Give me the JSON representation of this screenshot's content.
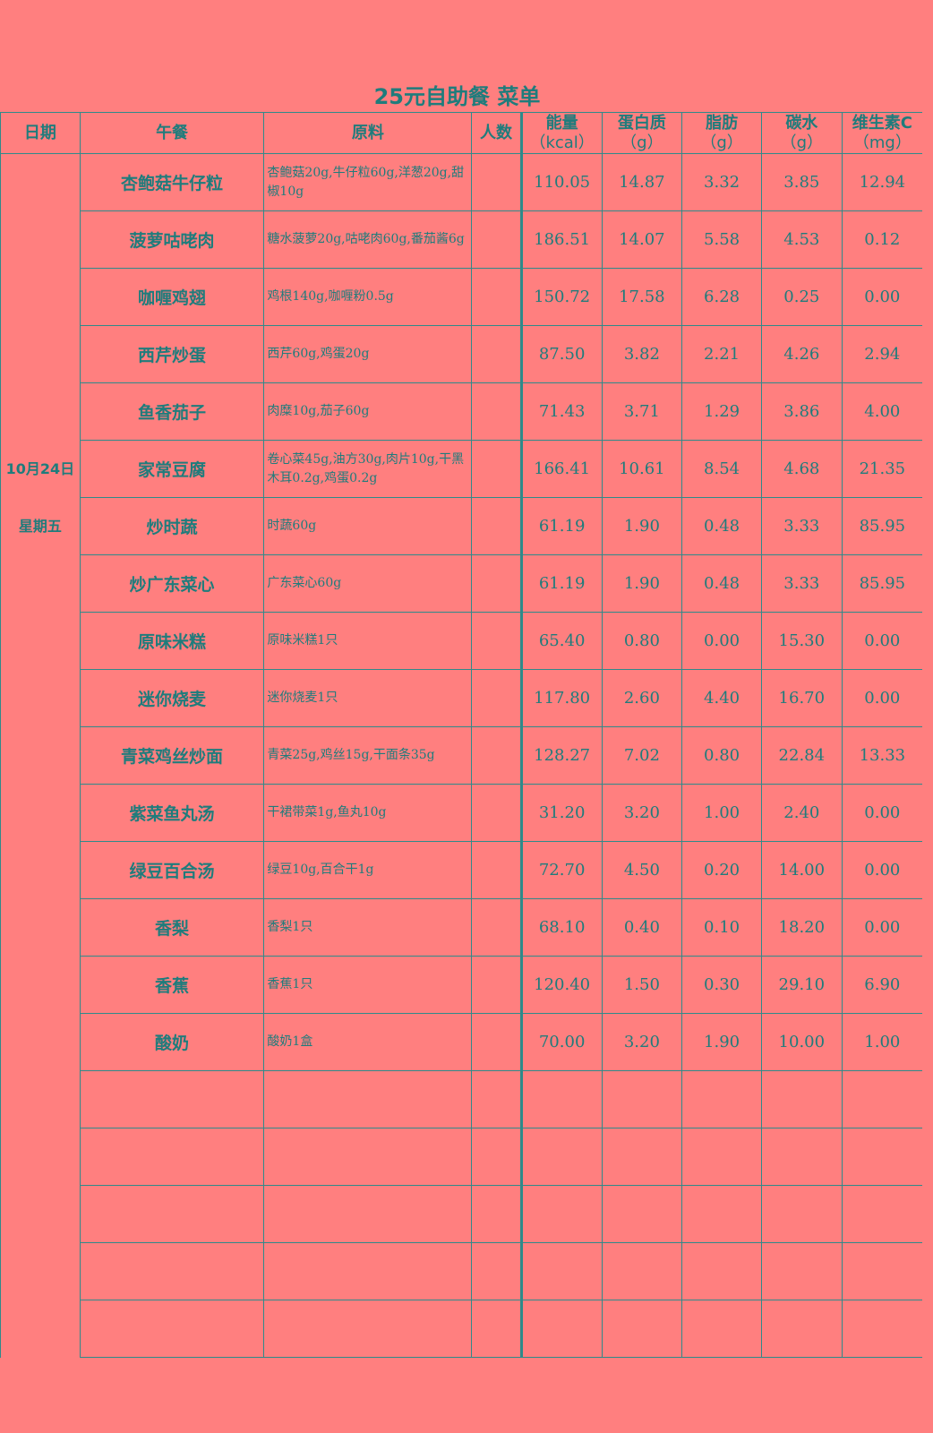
{
  "title": "25元自助餐 菜单",
  "headers": {
    "date": "日期",
    "lunch": "午餐",
    "ingredients": "原料",
    "people": "人数",
    "energy": [
      "能量",
      "（kcal）"
    ],
    "protein": [
      "蛋白质",
      "（g）"
    ],
    "fat": [
      "脂肪",
      "（g）"
    ],
    "carbs": [
      "碳水",
      "（g）"
    ],
    "vitc": [
      "维生素C",
      "（mg）"
    ]
  },
  "date": {
    "day": "10月24日",
    "weekday": "星期五"
  },
  "rows": [
    {
      "dish": "杏鲍菇牛仔粒",
      "ing": "杏鲍菇20g,牛仔粒60g,洋葱20g,甜椒10g",
      "people": "",
      "energy": "110.05",
      "protein": "14.87",
      "fat": "3.32",
      "carbs": "3.85",
      "vitc": "12.94"
    },
    {
      "dish": "菠萝咕咾肉",
      "ing": "糖水菠萝20g,咕咾肉60g,番茄酱6g",
      "people": "",
      "energy": "186.51",
      "protein": "14.07",
      "fat": "5.58",
      "carbs": "4.53",
      "vitc": "0.12"
    },
    {
      "dish": "咖喱鸡翅",
      "ing": "鸡根140g,咖喱粉0.5g",
      "people": "",
      "energy": "150.72",
      "protein": "17.58",
      "fat": "6.28",
      "carbs": "0.25",
      "vitc": "0.00"
    },
    {
      "dish": "西芹炒蛋",
      "ing": "西芹60g,鸡蛋20g",
      "people": "",
      "energy": "87.50",
      "protein": "3.82",
      "fat": "2.21",
      "carbs": "4.26",
      "vitc": "2.94"
    },
    {
      "dish": "鱼香茄子",
      "ing": "肉糜10g,茄子60g",
      "people": "",
      "energy": "71.43",
      "protein": "3.71",
      "fat": "1.29",
      "carbs": "3.86",
      "vitc": "4.00"
    },
    {
      "dish": "家常豆腐",
      "ing": "卷心菜45g,油方30g,肉片10g,干黑木耳0.2g,鸡蛋0.2g",
      "people": "",
      "energy": "166.41",
      "protein": "10.61",
      "fat": "8.54",
      "carbs": "4.68",
      "vitc": "21.35"
    },
    {
      "dish": "炒时蔬",
      "ing": "时蔬60g",
      "people": "",
      "energy": "61.19",
      "protein": "1.90",
      "fat": "0.48",
      "carbs": "3.33",
      "vitc": "85.95"
    },
    {
      "dish": "炒广东菜心",
      "ing": "广东菜心60g",
      "people": "",
      "energy": "61.19",
      "protein": "1.90",
      "fat": "0.48",
      "carbs": "3.33",
      "vitc": "85.95"
    },
    {
      "dish": "原味米糕",
      "ing": "原味米糕1只",
      "people": "",
      "energy": "65.40",
      "protein": "0.80",
      "fat": "0.00",
      "carbs": "15.30",
      "vitc": "0.00"
    },
    {
      "dish": "迷你烧麦",
      "ing": "迷你烧麦1只",
      "people": "",
      "energy": "117.80",
      "protein": "2.60",
      "fat": "4.40",
      "carbs": "16.70",
      "vitc": "0.00"
    },
    {
      "dish": "青菜鸡丝炒面",
      "ing": "青菜25g,鸡丝15g,干面条35g",
      "people": "",
      "energy": "128.27",
      "protein": "7.02",
      "fat": "0.80",
      "carbs": "22.84",
      "vitc": "13.33"
    },
    {
      "dish": "紫菜鱼丸汤",
      "ing": "干裙带菜1g,鱼丸10g",
      "people": "",
      "energy": "31.20",
      "protein": "3.20",
      "fat": "1.00",
      "carbs": "2.40",
      "vitc": "0.00"
    },
    {
      "dish": "绿豆百合汤",
      "ing": "绿豆10g,百合干1g",
      "people": "",
      "energy": "72.70",
      "protein": "4.50",
      "fat": "0.20",
      "carbs": "14.00",
      "vitc": "0.00"
    },
    {
      "dish": "香梨",
      "ing": "香梨1只",
      "people": "",
      "energy": "68.10",
      "protein": "0.40",
      "fat": "0.10",
      "carbs": "18.20",
      "vitc": "0.00"
    },
    {
      "dish": "香蕉",
      "ing": "香蕉1只",
      "people": "",
      "energy": "120.40",
      "protein": "1.50",
      "fat": "0.30",
      "carbs": "29.10",
      "vitc": "6.90"
    },
    {
      "dish": "酸奶",
      "ing": "酸奶1盒",
      "people": "",
      "energy": "70.00",
      "protein": "3.20",
      "fat": "1.90",
      "carbs": "10.00",
      "vitc": "1.00"
    },
    {
      "dish": "",
      "ing": "",
      "people": "",
      "energy": "",
      "protein": "",
      "fat": "",
      "carbs": "",
      "vitc": ""
    },
    {
      "dish": "",
      "ing": "",
      "people": "",
      "energy": "",
      "protein": "",
      "fat": "",
      "carbs": "",
      "vitc": ""
    },
    {
      "dish": "",
      "ing": "",
      "people": "",
      "energy": "",
      "protein": "",
      "fat": "",
      "carbs": "",
      "vitc": ""
    },
    {
      "dish": "",
      "ing": "",
      "people": "",
      "energy": "",
      "protein": "",
      "fat": "",
      "carbs": "",
      "vitc": ""
    },
    {
      "dish": "",
      "ing": "",
      "people": "",
      "energy": "",
      "protein": "",
      "fat": "",
      "carbs": "",
      "vitc": ""
    }
  ],
  "colors": {
    "background": "#ff7f7f",
    "text": "#1f7c7c",
    "border": "#2e8a8a"
  }
}
